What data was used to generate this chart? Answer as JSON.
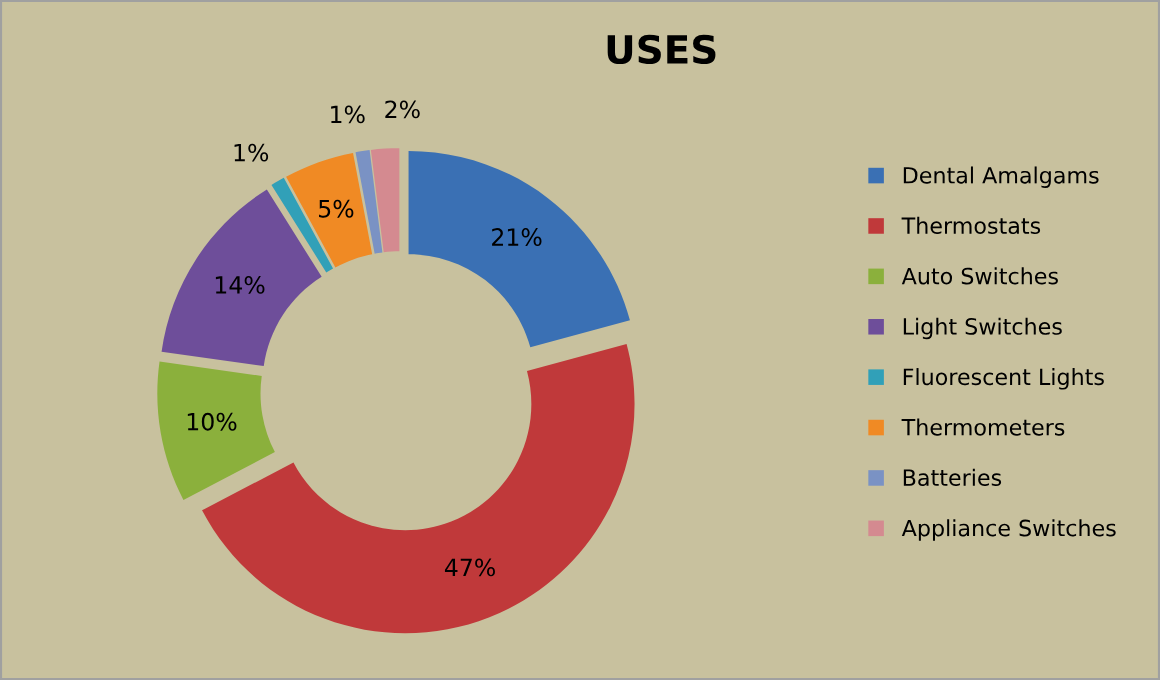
{
  "chart_data": {
    "type": "donut",
    "title": "USES",
    "categories": [
      "Dental Amalgams",
      "Thermostats",
      "Auto Switches",
      "Light Switches",
      "Fluorescent Lights",
      "Thermometers",
      "Batteries",
      "Appliance Switches"
    ],
    "values": [
      21,
      47,
      10,
      14,
      1,
      5,
      1,
      2
    ],
    "value_labels": [
      "21%",
      "47%",
      "10%",
      "14%",
      "1%",
      "5%",
      "1%",
      "2%"
    ],
    "colors": [
      "#3a70b4",
      "#c0393a",
      "#8bb03c",
      "#6e4e9a",
      "#31a0b8",
      "#f08a24",
      "#7a92c4",
      "#d48a90"
    ],
    "legend": "right"
  }
}
